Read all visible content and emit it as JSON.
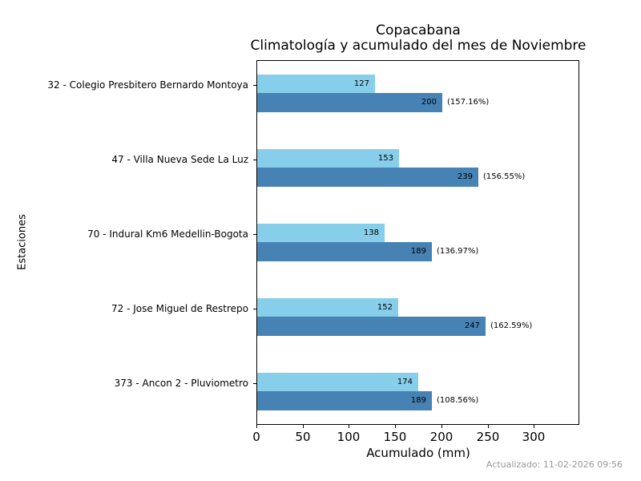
{
  "title": {
    "line1": "Copacabana",
    "line2": "Climatología y acumulado del mes de Noviembre"
  },
  "axes": {
    "xlabel": "Acumulado (mm)",
    "ylabel": "Estaciones",
    "xticks": [
      0,
      50,
      100,
      150,
      200,
      250,
      300
    ],
    "xlim": [
      0,
      349
    ]
  },
  "footer": {
    "updated": "Actualizado: 11-02-2026 09:56"
  },
  "colors": {
    "climatologia_bar": "#87CEEB",
    "acumulado_bar": "#4682B4",
    "spine": "#000000",
    "footer_text": "#999999"
  },
  "chart_data": {
    "type": "bar",
    "orientation": "horizontal",
    "title": "Copacabana\nClimatología y acumulado del mes de Noviembre",
    "xlabel": "Acumulado (mm)",
    "ylabel": "Estaciones",
    "xlim": [
      0,
      349
    ],
    "xticks": [
      0,
      50,
      100,
      150,
      200,
      250,
      300
    ],
    "grid": false,
    "legend": "none",
    "categories": [
      "32 - Colegio Presbitero Bernardo Montoya",
      "47 - Villa Nueva Sede La Luz",
      "70 - Indural Km6 Medellin-Bogota",
      "72 - Jose Miguel de Restrepo",
      "373 - Ancon 2 - Pluviometro"
    ],
    "series": [
      {
        "name": "Climatología",
        "color": "#87CEEB",
        "values": [
          127,
          153,
          138,
          152,
          174
        ]
      },
      {
        "name": "Acumulado",
        "color": "#4682B4",
        "values": [
          200,
          239,
          189,
          247,
          189
        ],
        "annotations": [
          "(157.16%)",
          "(156.55%)",
          "(136.97%)",
          "(162.59%)",
          "(108.56%)"
        ]
      }
    ]
  }
}
